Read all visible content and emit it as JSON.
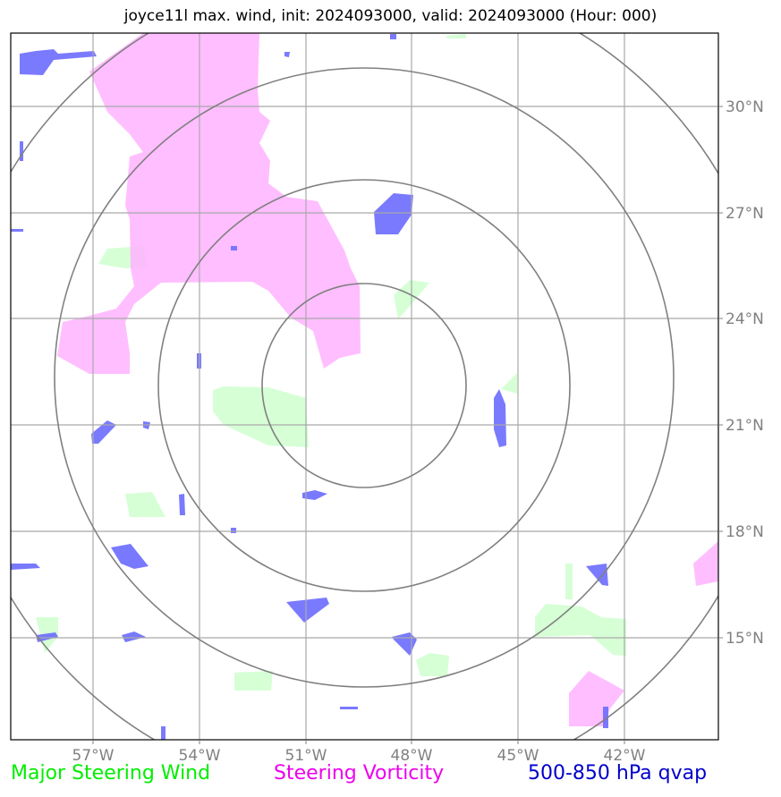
{
  "title": "joyce11l max. wind, init: 2024093000, valid: 2024093000 (Hour: 000)",
  "map": {
    "lat_labels": [
      "30°N",
      "27°N",
      "24°N",
      "21°N",
      "18°N",
      "15°N"
    ],
    "lon_labels": [
      "57°W",
      "54°W",
      "51°W",
      "48°W",
      "45°W",
      "42°W"
    ],
    "range_rings": 4
  },
  "legend": {
    "green": "Major Steering Wind",
    "magenta": "Steering Vorticity",
    "blue": "500-850 hPa qvap"
  },
  "colors": {
    "wind": "#ccffcc",
    "vorticity": "#ffb3ff",
    "qvap": "#6b6bff",
    "grid": "#a9a9a9",
    "rings": "#808080"
  }
}
